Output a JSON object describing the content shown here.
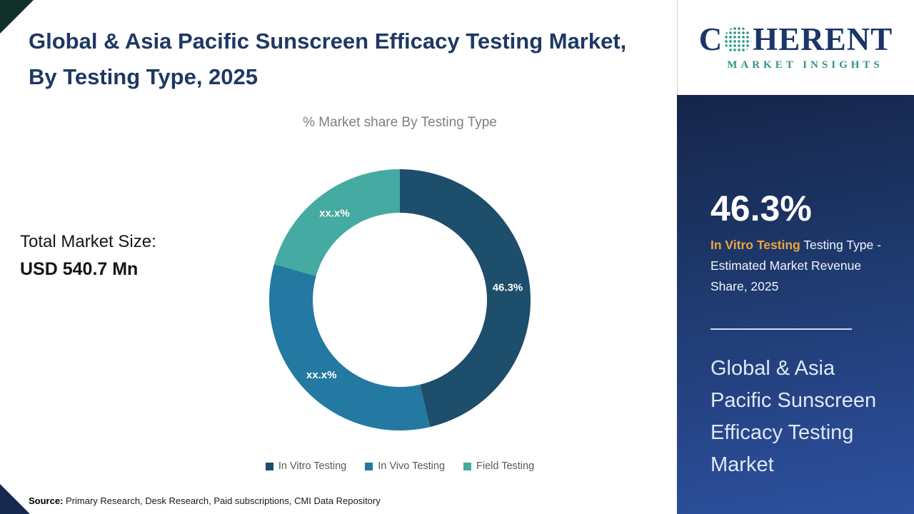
{
  "header": {
    "title": "Global & Asia Pacific Sunscreen Efficacy Testing Market, By Testing Type, 2025"
  },
  "market_size": {
    "label": "Total Market Size:",
    "value": "USD 540.7 Mn"
  },
  "chart_data": {
    "type": "pie",
    "subtype": "donut",
    "title": "% Market share By Testing Type",
    "legend_position": "bottom",
    "start_angle_deg": 0,
    "direction": "clockwise",
    "note": "In Vivo and Field slice values are masked as xx.x% in the image; numeric values estimated from arc angles",
    "series": [
      {
        "name": "In Vitro Testing",
        "value": 46.3,
        "label": "46.3%",
        "color": "#1d4e6b"
      },
      {
        "name": "In Vivo Testing",
        "value": 33.1,
        "label": "xx.x%",
        "color": "#2379a1"
      },
      {
        "name": "Field Testing",
        "value": 20.6,
        "label": "xx.x%",
        "color": "#45aaa1"
      }
    ]
  },
  "source": {
    "label": "Source:",
    "text": "Primary Research, Desk Research, Paid subscriptions, CMI Data Repository"
  },
  "sidebar": {
    "logo": {
      "wordmark_prefix": "C",
      "wordmark_suffix": "HERENT",
      "subtext": "MARKET INSIGHTS"
    },
    "stat_value": "46.3%",
    "stat_highlight": "In Vitro Testing",
    "stat_rest": "Testing Type - Estimated Market Revenue Share, 2025",
    "panel_title": "Global & Asia Pacific Sunscreen Efficacy Testing Market"
  },
  "colors": {
    "title_navy": "#1f3864",
    "accent_amber": "#eda43e",
    "panel_gradient_top": "#152549",
    "panel_gradient_bottom": "#2d51a0",
    "corner_top_left": "#12302a",
    "corner_bottom_left": "#16294f"
  }
}
